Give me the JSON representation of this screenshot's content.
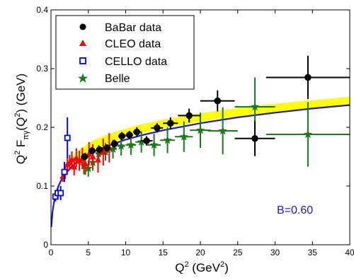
{
  "chart_data": {
    "type": "scatter",
    "xlabel_base": "Q",
    "xlabel_sup": "2",
    "xlabel_unit_open": " (GeV",
    "xlabel_unit_sup": "2",
    "xlabel_unit_close": ")",
    "ylabel_parts": {
      "q": "Q",
      "q_sup": "2",
      "f": " F",
      "f_sub": "πγ",
      "paren_open": "(Q",
      "paren_sup": "2",
      "paren_close": ") (GeV)"
    },
    "xlim": [
      0,
      40
    ],
    "ylim": [
      0,
      0.4
    ],
    "x_ticks": [
      0,
      5,
      10,
      15,
      20,
      25,
      30,
      35,
      40
    ],
    "x_tick_labels": [
      "0",
      "5",
      "10",
      "15",
      "20",
      "25",
      "30",
      "35",
      "40"
    ],
    "y_ticks": [
      0,
      0.1,
      0.2,
      0.3,
      0.4
    ],
    "y_tick_labels": [
      "0",
      "0.1",
      "0.2",
      "0.3",
      "0.4"
    ],
    "grid": false,
    "legend_position": "top-left",
    "annotation": "B=0.60",
    "colors": {
      "babar": "#000000",
      "cleo": "#ff0000",
      "cello": "#0000ff",
      "belle": "#1a7a1a",
      "curve": "#1a1ac8",
      "band": "#ffff00",
      "annotation": "#1a1ac8"
    },
    "series": [
      {
        "name": "BaBar data",
        "marker": "circle",
        "points": [
          {
            "x": 4.5,
            "y": 0.15,
            "xerr": 0.5,
            "yerr": 0.006
          },
          {
            "x": 5.5,
            "y": 0.16,
            "xerr": 0.5,
            "yerr": 0.006
          },
          {
            "x": 6.5,
            "y": 0.162,
            "xerr": 0.5,
            "yerr": 0.006
          },
          {
            "x": 7.5,
            "y": 0.165,
            "xerr": 0.5,
            "yerr": 0.006
          },
          {
            "x": 8.5,
            "y": 0.172,
            "xerr": 0.5,
            "yerr": 0.007
          },
          {
            "x": 9.5,
            "y": 0.185,
            "xerr": 0.5,
            "yerr": 0.007
          },
          {
            "x": 10.5,
            "y": 0.187,
            "xerr": 0.5,
            "yerr": 0.007
          },
          {
            "x": 11.5,
            "y": 0.192,
            "xerr": 0.5,
            "yerr": 0.008
          },
          {
            "x": 12.8,
            "y": 0.177,
            "xerr": 0.8,
            "yerr": 0.008
          },
          {
            "x": 14.2,
            "y": 0.199,
            "xerr": 0.8,
            "yerr": 0.008
          },
          {
            "x": 16.0,
            "y": 0.207,
            "xerr": 1.0,
            "yerr": 0.01
          },
          {
            "x": 18.5,
            "y": 0.22,
            "xerr": 1.5,
            "yerr": 0.012
          },
          {
            "x": 22.3,
            "y": 0.245,
            "xerr": 2.3,
            "yerr": 0.018
          },
          {
            "x": 27.3,
            "y": 0.181,
            "xerr": 2.7,
            "yerr": 0.03
          },
          {
            "x": 34.4,
            "y": 0.285,
            "xerr": 5.6,
            "yerr": 0.037
          }
        ]
      },
      {
        "name": "CLEO data",
        "marker": "triangle",
        "points": [
          {
            "x": 1.6,
            "y": 0.117,
            "yerr": 0.01
          },
          {
            "x": 1.9,
            "y": 0.125,
            "yerr": 0.012
          },
          {
            "x": 2.2,
            "y": 0.137,
            "yerr": 0.012
          },
          {
            "x": 2.5,
            "y": 0.14,
            "yerr": 0.013
          },
          {
            "x": 2.8,
            "y": 0.145,
            "yerr": 0.014
          },
          {
            "x": 3.1,
            "y": 0.133,
            "yerr": 0.015
          },
          {
            "x": 3.4,
            "y": 0.148,
            "yerr": 0.016
          },
          {
            "x": 3.8,
            "y": 0.143,
            "yerr": 0.017
          },
          {
            "x": 4.2,
            "y": 0.147,
            "yerr": 0.018
          },
          {
            "x": 4.6,
            "y": 0.138,
            "yerr": 0.019
          },
          {
            "x": 5.1,
            "y": 0.155,
            "yerr": 0.02
          },
          {
            "x": 5.6,
            "y": 0.15,
            "yerr": 0.021
          },
          {
            "x": 6.3,
            "y": 0.145,
            "yerr": 0.022
          },
          {
            "x": 7.0,
            "y": 0.158,
            "yerr": 0.023
          },
          {
            "x": 7.8,
            "y": 0.165,
            "yerr": 0.025
          }
        ]
      },
      {
        "name": "CELLO data",
        "marker": "square",
        "points": [
          {
            "x": 0.6,
            "y": 0.082,
            "yerr": 0.008
          },
          {
            "x": 0.9,
            "y": 0.088,
            "yerr": 0.009
          },
          {
            "x": 1.3,
            "y": 0.088,
            "yerr": 0.012
          },
          {
            "x": 1.8,
            "y": 0.124,
            "yerr": 0.017
          },
          {
            "x": 2.2,
            "y": 0.182,
            "yerr": 0.035
          }
        ]
      },
      {
        "name": "Belle",
        "marker": "star",
        "points": [
          {
            "x": 4.4,
            "y": 0.135,
            "xerr": 0.3,
            "yerr": 0.015
          },
          {
            "x": 5.0,
            "y": 0.13,
            "xerr": 0.3,
            "yerr": 0.014
          },
          {
            "x": 5.6,
            "y": 0.14,
            "xerr": 0.3,
            "yerr": 0.014
          },
          {
            "x": 6.4,
            "y": 0.155,
            "xerr": 0.4,
            "yerr": 0.015
          },
          {
            "x": 7.3,
            "y": 0.158,
            "xerr": 0.4,
            "yerr": 0.015
          },
          {
            "x": 8.3,
            "y": 0.163,
            "xerr": 0.5,
            "yerr": 0.016
          },
          {
            "x": 9.4,
            "y": 0.168,
            "xerr": 0.5,
            "yerr": 0.016
          },
          {
            "x": 10.7,
            "y": 0.17,
            "xerr": 0.7,
            "yerr": 0.017
          },
          {
            "x": 12.1,
            "y": 0.175,
            "xerr": 0.8,
            "yerr": 0.018
          },
          {
            "x": 13.8,
            "y": 0.17,
            "xerr": 0.9,
            "yerr": 0.019
          },
          {
            "x": 15.6,
            "y": 0.178,
            "xerr": 1.0,
            "yerr": 0.022
          },
          {
            "x": 17.8,
            "y": 0.184,
            "xerr": 1.2,
            "yerr": 0.026
          },
          {
            "x": 20.0,
            "y": 0.195,
            "xerr": 1.4,
            "yerr": 0.03
          },
          {
            "x": 23.0,
            "y": 0.194,
            "xerr": 2.0,
            "yerr": 0.04
          },
          {
            "x": 27.3,
            "y": 0.235,
            "xerr": 2.7,
            "yerr": 0.05
          },
          {
            "x": 34.4,
            "y": 0.188,
            "xerr": 5.6,
            "yerr": 0.055
          }
        ]
      }
    ],
    "curve": {
      "name": "fit",
      "x": [
        0.05,
        0.2,
        0.4,
        0.7,
        1.0,
        1.5,
        2,
        3,
        4,
        5,
        6,
        8,
        10,
        12,
        15,
        20,
        25,
        30,
        35,
        40
      ],
      "y": [
        0.03,
        0.055,
        0.072,
        0.088,
        0.1,
        0.113,
        0.122,
        0.136,
        0.146,
        0.154,
        0.16,
        0.17,
        0.179,
        0.186,
        0.195,
        0.207,
        0.217,
        0.225,
        0.232,
        0.238
      ],
      "band_low": [
        0.03,
        0.055,
        0.072,
        0.088,
        0.1,
        0.113,
        0.125,
        0.14,
        0.15,
        0.158,
        0.164,
        0.174,
        0.183,
        0.19,
        0.199,
        0.21,
        0.219,
        0.226,
        0.232,
        0.237
      ],
      "band_high": [
        0.03,
        0.055,
        0.072,
        0.088,
        0.1,
        0.116,
        0.133,
        0.152,
        0.164,
        0.173,
        0.18,
        0.19,
        0.198,
        0.205,
        0.213,
        0.224,
        0.233,
        0.24,
        0.246,
        0.252
      ]
    }
  }
}
